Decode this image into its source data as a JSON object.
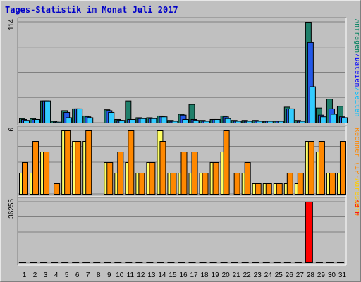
{
  "title": "Tages-Statistik im Monat Juli 2017",
  "colors": {
    "anfragen": "#1f7f6a",
    "dateien": "#2459e8",
    "seiten": "#33ccff",
    "rechner": "#ffff66",
    "besuche": "#ff8800",
    "kb": "#ff0000",
    "weekend": "#00804a",
    "weekday": "#000000",
    "label_anfragen": "#00805e",
    "label_dateien": "#0000ff",
    "label_seiten": "#00bfff",
    "label_rechner": "#ff8800",
    "label_besuche": "#ffcc00",
    "label_kb": "#ff0000"
  },
  "chart_data": {
    "type": "bar",
    "title": "Tages-Statistik im Monat Juli 2017",
    "categories": [
      "1",
      "2",
      "3",
      "4",
      "5",
      "6",
      "7",
      "8",
      "9",
      "10",
      "11",
      "12",
      "13",
      "14",
      "15",
      "16",
      "17",
      "18",
      "19",
      "20",
      "21",
      "22",
      "23",
      "24",
      "25",
      "26",
      "27",
      "28",
      "29",
      "30",
      "31"
    ],
    "weekend_days": [
      "1",
      "2",
      "8",
      "9",
      "15",
      "16",
      "22",
      "23",
      "29",
      "30"
    ],
    "panels": [
      {
        "id": "requests",
        "ymax_label": "114",
        "ylim": [
          0,
          114
        ],
        "legend": [
          {
            "text": "Anfragen",
            "color_key": "label_anfragen"
          },
          {
            "text": "/",
            "color_key": "label_dateien"
          },
          {
            "text": "Dateien",
            "color_key": "label_dateien"
          },
          {
            "text": "/",
            "color_key": "label_seiten"
          },
          {
            "text": "Seiten",
            "color_key": "label_seiten"
          }
        ],
        "series": [
          {
            "name": "Anfragen",
            "color_key": "anfragen",
            "values": [
              5,
              5,
              25,
              2,
              14,
              16,
              8,
              0,
              15,
              4,
              25,
              6,
              6,
              8,
              3,
              10,
              21,
              3,
              4,
              8,
              3,
              3,
              3,
              2,
              2,
              18,
              3,
              114,
              17,
              27,
              19
            ]
          },
          {
            "name": "Dateien",
            "color_key": "dateien",
            "values": [
              4,
              4,
              25,
              1,
              12,
              16,
              7,
              0,
              14,
              3,
              4,
              5,
              5,
              7,
              2,
              9,
              4,
              2,
              4,
              7,
              2,
              2,
              2,
              2,
              2,
              16,
              2,
              91,
              9,
              16,
              7
            ]
          },
          {
            "name": "Seiten",
            "color_key": "seiten",
            "values": [
              3,
              4,
              25,
              1,
              6,
              16,
              6,
              0,
              12,
              3,
              4,
              5,
              5,
              7,
              2,
              4,
              3,
              2,
              4,
              5,
              2,
              2,
              2,
              2,
              2,
              16,
              2,
              41,
              7,
              10,
              6
            ]
          }
        ]
      },
      {
        "id": "hosts",
        "ymax_label": "6",
        "ylim": [
          0,
          6
        ],
        "legend": [
          {
            "text": "Rechner",
            "color_key": "label_rechner"
          },
          {
            "text": " (IP-",
            "color_key": "label_rechner"
          },
          {
            "text": "Adressen",
            "color_key": "label_besuche"
          },
          {
            "text": ")",
            "color_key": "label_rechner"
          }
        ],
        "series": [
          {
            "name": "Rechner",
            "color_key": "rechner",
            "values": [
              2,
              2,
              4,
              0,
              6,
              5,
              5,
              0,
              3,
              2,
              3,
              2,
              3,
              6,
              2,
              2,
              2,
              2,
              3,
              4,
              0,
              2,
              1,
              1,
              1,
              1,
              1,
              5,
              4,
              2,
              2
            ]
          },
          {
            "name": "Adressen",
            "color_key": "besuche",
            "values": [
              3,
              5,
              4,
              1,
              6,
              5,
              6,
              0,
              3,
              4,
              6,
              2,
              3,
              5,
              2,
              4,
              4,
              2,
              3,
              6,
              2,
              3,
              1,
              1,
              1,
              2,
              2,
              5,
              5,
              2,
              5
            ]
          }
        ]
      },
      {
        "id": "kb",
        "ymax_label": "36255",
        "ylim": [
          0,
          36255
        ],
        "legend": [
          {
            "text": "kB F",
            "color_key": "label_kb"
          }
        ],
        "series": [
          {
            "name": "kB F",
            "color_key": "kb",
            "values": [
              200,
              200,
              200,
              200,
              200,
              200,
              200,
              0,
              200,
              200,
              200,
              200,
              200,
              200,
              200,
              200,
              200,
              200,
              200,
              200,
              200,
              200,
              200,
              200,
              200,
              200,
              200,
              36255,
              200,
              200,
              200
            ]
          }
        ]
      }
    ]
  }
}
